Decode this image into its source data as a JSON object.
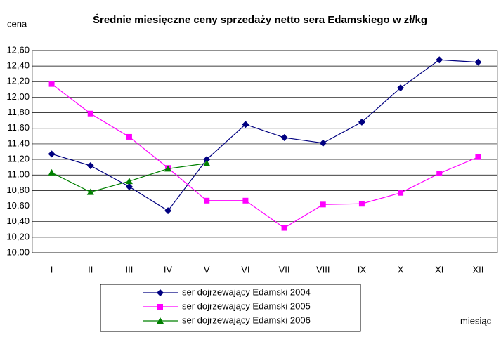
{
  "chart_data": {
    "type": "line",
    "title": "Średnie miesięczne ceny sprzedaży netto sera Edamskiego w zł/kg",
    "y_label": "cena",
    "x_label": "miesiąc",
    "categories": [
      "I",
      "II",
      "III",
      "IV",
      "V",
      "VI",
      "VII",
      "VIII",
      "IX",
      "X",
      "XI",
      "XII"
    ],
    "series": [
      {
        "name": "ser dojrzewający Edamski 2004",
        "color": "#000080",
        "marker": "diamond",
        "values": [
          11.27,
          11.12,
          10.85,
          10.54,
          11.2,
          11.65,
          11.48,
          11.41,
          11.68,
          12.12,
          12.48,
          12.45
        ]
      },
      {
        "name": "ser dojrzewający Edamski 2005",
        "color": "#ff00ff",
        "marker": "square",
        "values": [
          12.17,
          11.79,
          11.49,
          11.09,
          10.67,
          10.67,
          10.32,
          10.62,
          10.63,
          10.77,
          11.02,
          11.23
        ]
      },
      {
        "name": "ser dojrzewający Edamski 2006",
        "color": "#008000",
        "marker": "triangle",
        "values": [
          11.03,
          10.78,
          10.92,
          11.08,
          11.15,
          null,
          null,
          null,
          null,
          null,
          null,
          null
        ]
      }
    ],
    "ylim": [
      10.0,
      12.6
    ],
    "yticks": [
      {
        "value": 10.0,
        "label": "10,00"
      },
      {
        "value": 10.2,
        "label": "10,20"
      },
      {
        "value": 10.4,
        "label": "10,40"
      },
      {
        "value": 10.6,
        "label": "10,60"
      },
      {
        "value": 10.8,
        "label": "10,80"
      },
      {
        "value": 11.0,
        "label": "11,00"
      },
      {
        "value": 11.2,
        "label": "11,20"
      },
      {
        "value": 11.4,
        "label": "11,40"
      },
      {
        "value": 11.6,
        "label": "11,60"
      },
      {
        "value": 11.8,
        "label": "11,80"
      },
      {
        "value": 12.0,
        "label": "12,00"
      },
      {
        "value": 12.2,
        "label": "12,20"
      },
      {
        "value": 12.4,
        "label": "12,40"
      },
      {
        "value": 12.6,
        "label": "12,60"
      }
    ],
    "grid": true,
    "legend": "bottom"
  }
}
